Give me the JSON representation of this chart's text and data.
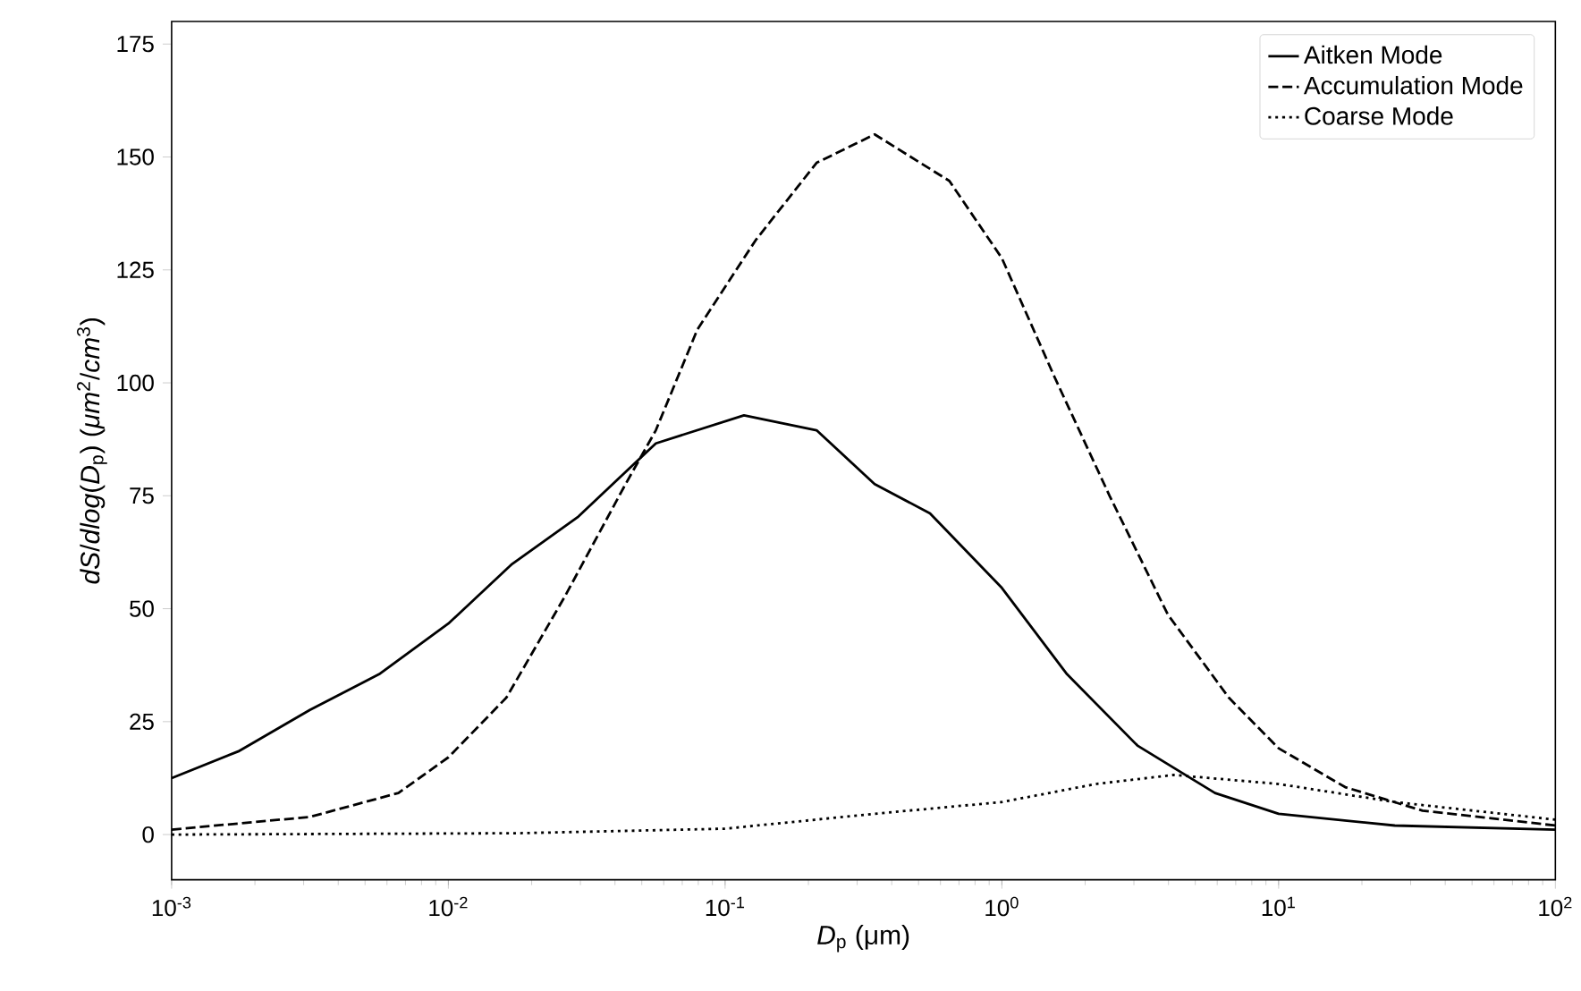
{
  "chart_data": {
    "type": "line",
    "xlabel": "*D*$_{p}$ (μm)",
    "ylabel": "*dS*/*dlog*(*D*$_{p}$) (*μm*$^{2}$/*cm*$^{3}$)",
    "log": "x",
    "xlim": [
      0.001,
      100
    ],
    "ylim": [
      -10,
      180
    ],
    "xticks": [
      {
        "value": 0.001,
        "label": "10$^{-3}$"
      },
      {
        "value": 0.01,
        "label": "10$^{-2}$"
      },
      {
        "value": 0.1,
        "label": "10$^{-1}$"
      },
      {
        "value": 1,
        "label": "10$^{0}$"
      },
      {
        "value": 10,
        "label": "10$^{1}$"
      },
      {
        "value": 100,
        "label": "10$^{2}$"
      }
    ],
    "yticks": [
      0,
      25,
      50,
      75,
      100,
      125,
      150,
      175
    ],
    "legend": "top right",
    "series": [
      {
        "name": "Aitken Mode",
        "color": "#000000",
        "line_style": "solid",
        "x": [
          0.001,
          0.00174,
          0.00316,
          0.00562,
          0.01,
          0.017,
          0.0295,
          0.0562,
          0.117,
          0.214,
          0.347,
          0.55,
          1,
          1.72,
          3.09,
          5.89,
          10,
          26.3,
          100
        ],
        "values": [
          12.5,
          18.4,
          27.6,
          35.5,
          46.7,
          59.9,
          70.4,
          86.6,
          92.8,
          89.5,
          77.6,
          71.1,
          54.6,
          35.5,
          19.7,
          9.2,
          4.6,
          2.0,
          1.1
        ]
      },
      {
        "name": "Accumulation Mode",
        "color": "#000000",
        "line_style": "dashed",
        "x": [
          0.001,
          0.00316,
          0.0066,
          0.01,
          0.0162,
          0.0263,
          0.0437,
          0.0562,
          0.0794,
          0.129,
          0.214,
          0.347,
          0.646,
          1,
          1.55,
          2.45,
          3.98,
          6.61,
          10,
          17.4,
          33.1,
          100
        ],
        "values": [
          1.1,
          3.9,
          9.2,
          17.1,
          30.3,
          52.6,
          77.6,
          89.5,
          111.8,
          131.6,
          148.7,
          155,
          144.7,
          127.6,
          101.3,
          75,
          48.7,
          30.3,
          19.1,
          10.5,
          5.3,
          2.0
        ]
      },
      {
        "name": "Coarse Mode",
        "color": "#000000",
        "line_style": "dotted",
        "x": [
          0.001,
          0.0178,
          0.1,
          0.347,
          1,
          2.19,
          4.17,
          10,
          26.3,
          100
        ],
        "values": [
          0,
          0.3,
          1.3,
          4.6,
          7.2,
          11.2,
          13.2,
          11.2,
          7.2,
          3.3
        ]
      }
    ]
  }
}
